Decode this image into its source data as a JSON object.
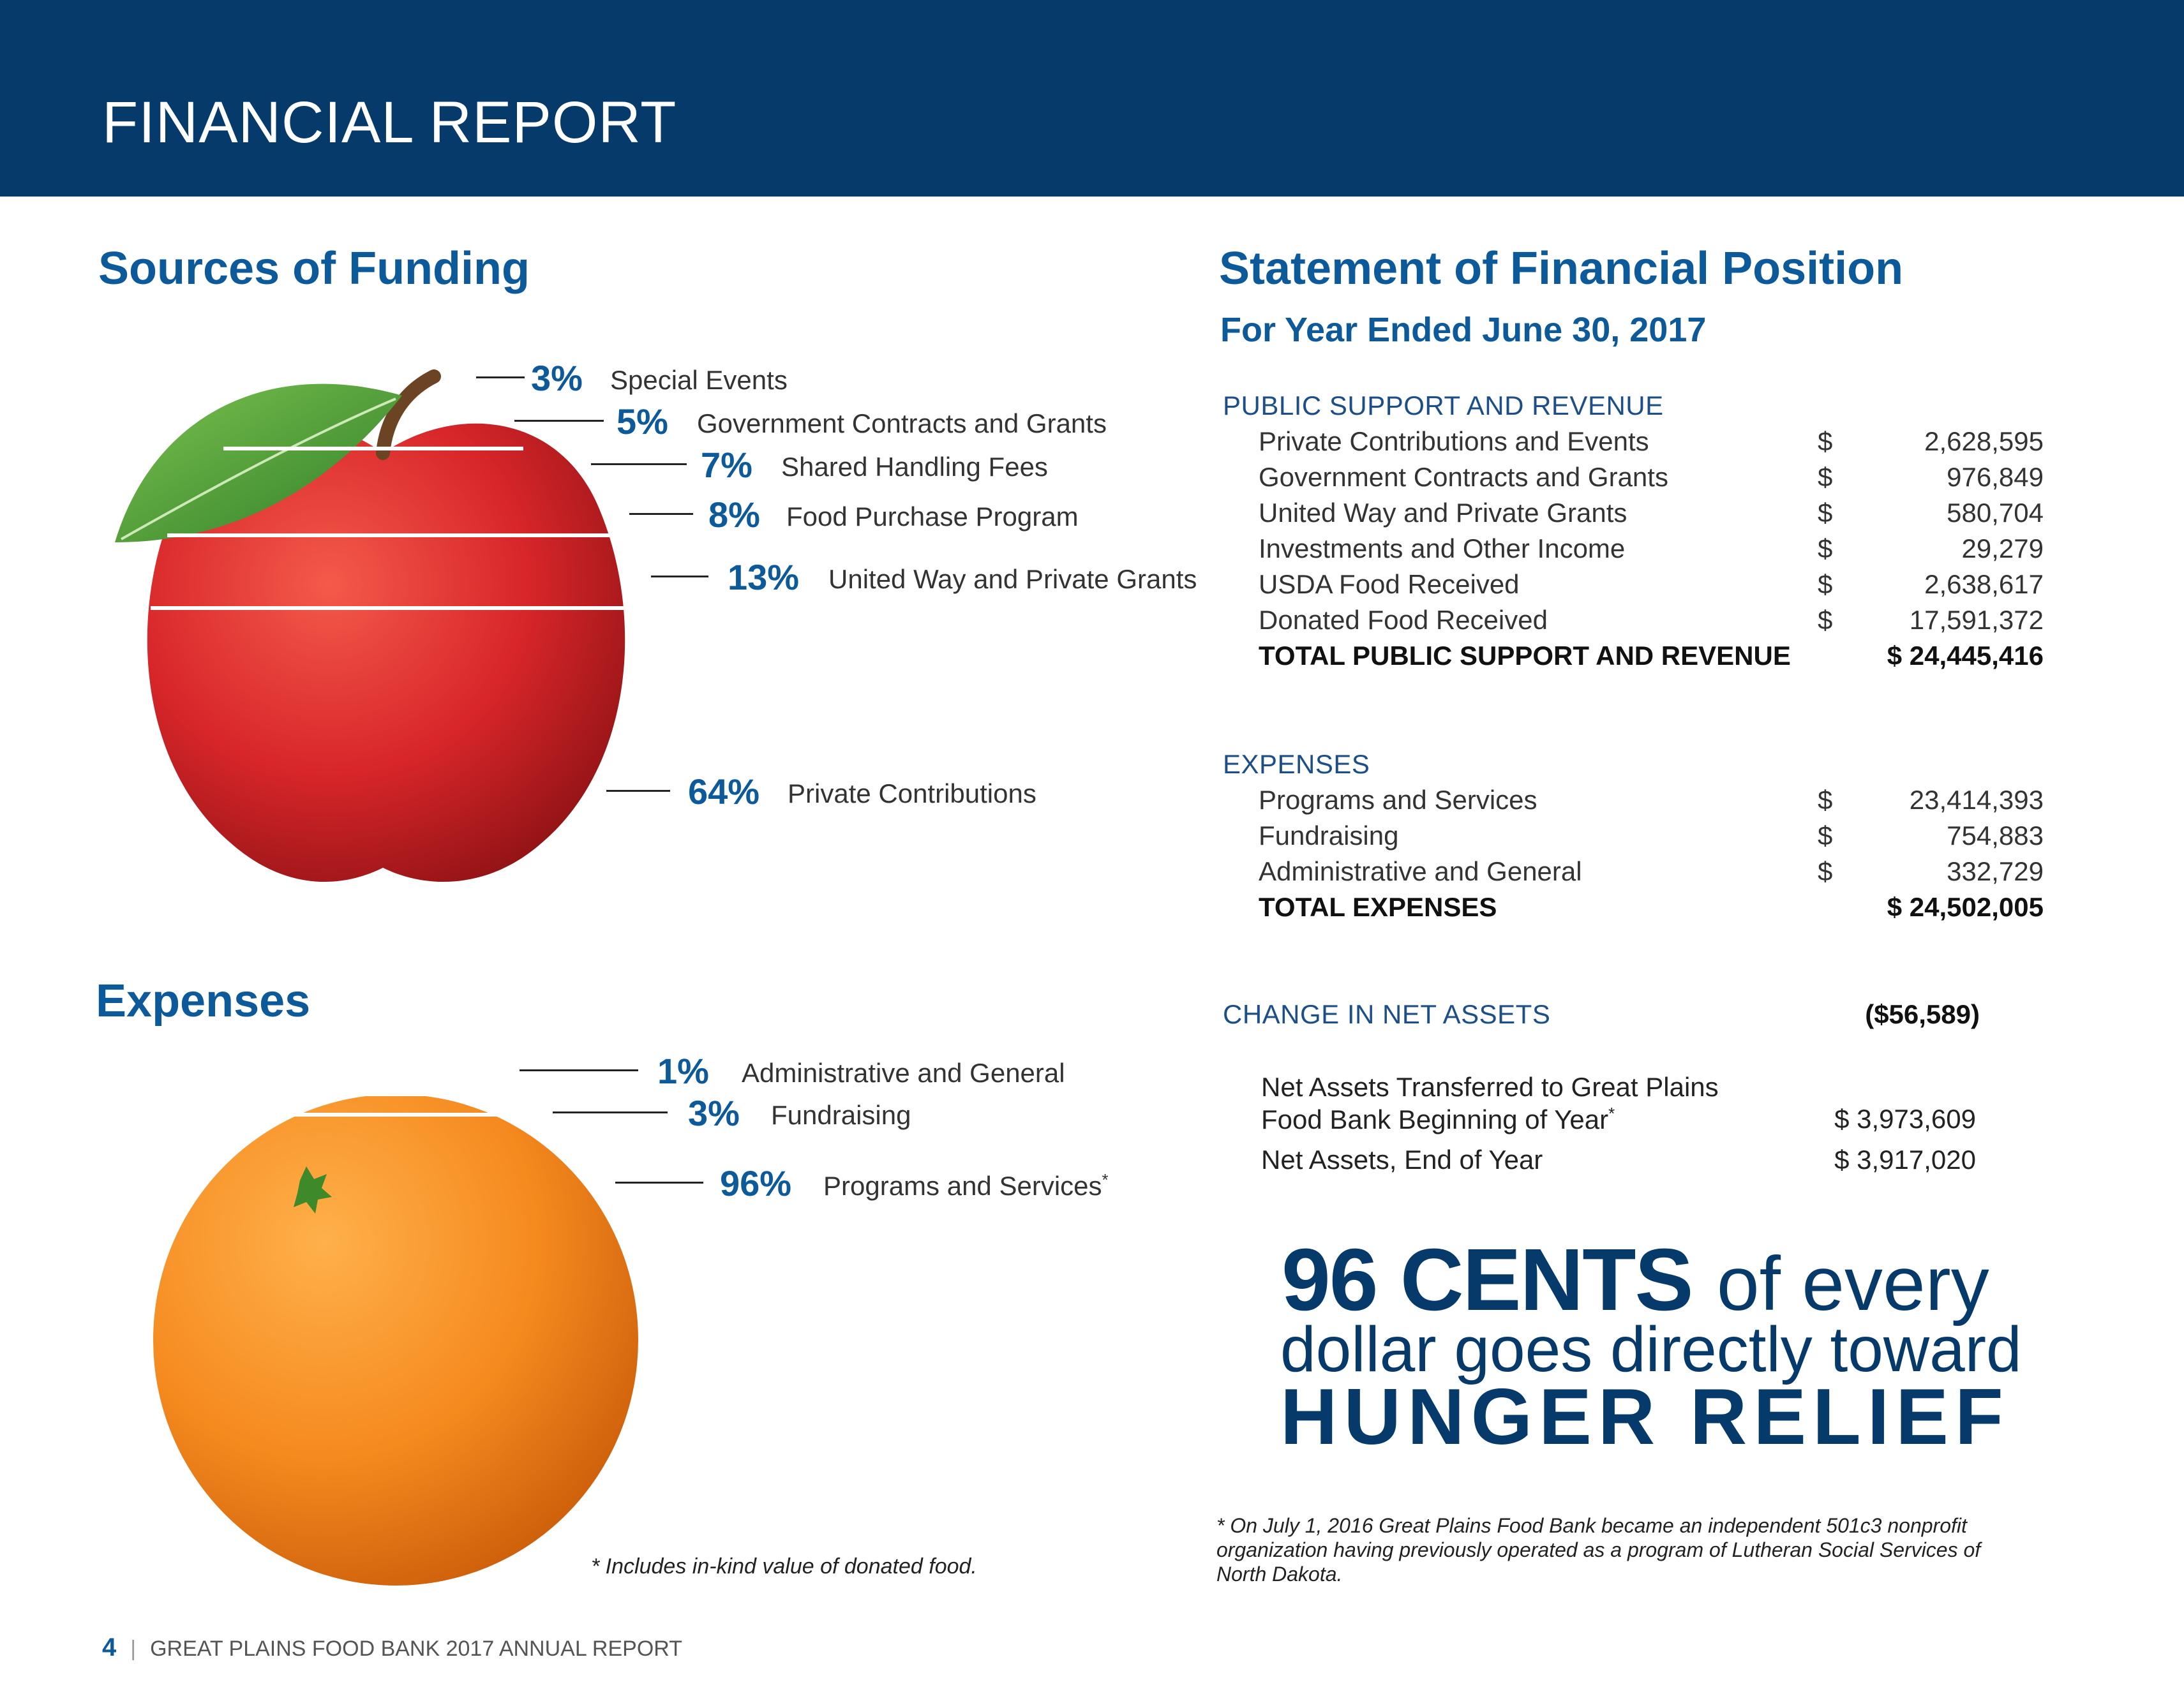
{
  "header": {
    "title": "FINANCIAL REPORT"
  },
  "funding": {
    "title": "Sources of Funding",
    "items": [
      {
        "pct": "3%",
        "label": "Special Events"
      },
      {
        "pct": "5%",
        "label": "Government Contracts and Grants"
      },
      {
        "pct": "7%",
        "label": "Shared Handling Fees"
      },
      {
        "pct": "8%",
        "label": "Food Purchase Program"
      },
      {
        "pct": "13%",
        "label": "United Way and Private Grants"
      },
      {
        "pct": "64%",
        "label": "Private Contributions"
      }
    ]
  },
  "expenses_chart": {
    "title": "Expenses",
    "items": [
      {
        "pct": "1%",
        "label": "Administrative and General"
      },
      {
        "pct": "3%",
        "label": "Fundraising"
      },
      {
        "pct": "96%",
        "label": "Programs and Services",
        "mark": "*"
      }
    ],
    "footnote": "* Includes in-kind value of donated food."
  },
  "statement": {
    "title": "Statement of Financial Position",
    "subtitle": "For Year Ended June 30, 2017",
    "revenue": {
      "heading": "PUBLIC SUPPORT AND REVENUE",
      "rows": [
        {
          "label": "Private Contributions and Events",
          "dollar": "$",
          "amount": "2,628,595"
        },
        {
          "label": "Government Contracts and Grants",
          "dollar": "$",
          "amount": "976,849"
        },
        {
          "label": "United Way and Private Grants",
          "dollar": "$",
          "amount": "580,704"
        },
        {
          "label": "Investments and Other Income",
          "dollar": "$",
          "amount": "29,279"
        },
        {
          "label": "USDA Food Received",
          "dollar": "$",
          "amount": "2,638,617"
        },
        {
          "label": "Donated Food Received",
          "dollar": "$",
          "amount": "17,591,372"
        }
      ],
      "total_label": "TOTAL PUBLIC SUPPORT AND REVENUE",
      "total_amount": "$ 24,445,416"
    },
    "expenses": {
      "heading": "EXPENSES",
      "rows": [
        {
          "label": "Programs and Services",
          "dollar": "$",
          "amount": "23,414,393"
        },
        {
          "label": "Fundraising",
          "dollar": "$",
          "amount": "754,883"
        },
        {
          "label": "Administrative and General",
          "dollar": "$",
          "amount": "332,729"
        }
      ],
      "total_label": "TOTAL EXPENSES",
      "total_amount": "$ 24,502,005"
    },
    "change": {
      "label": "CHANGE IN NET ASSETS",
      "amount": "($56,589)"
    },
    "net_assets": {
      "transferred_line1": "Net Assets Transferred to Great Plains",
      "transferred_line2": "Food Bank Beginning of Year",
      "transferred_mark": "*",
      "transferred_amount": "$  3,973,609",
      "end_label": "Net Assets, End of Year",
      "end_amount": "$  3,917,020"
    }
  },
  "callout": {
    "line1_bold": "96 CENTS",
    "line1_rest": "of every",
    "line2": "dollar goes directly toward",
    "line3": "HUNGER RELIEF"
  },
  "footnote_right": "* On July 1, 2016 Great Plains Food Bank became an independent 501c3 nonprofit organization having previously operated as a program of Lutheran Social Services of North Dakota.",
  "footer": {
    "page": "4",
    "separator": "|",
    "text": "GREAT PLAINS FOOD BANK 2017 ANNUAL REPORT"
  },
  "colors": {
    "navy": "#063a6b",
    "blue": "#0d5a9b",
    "apple_red": "#d8262a",
    "orange": "#f58a1f",
    "leaf_green": "#4aa53a"
  }
}
